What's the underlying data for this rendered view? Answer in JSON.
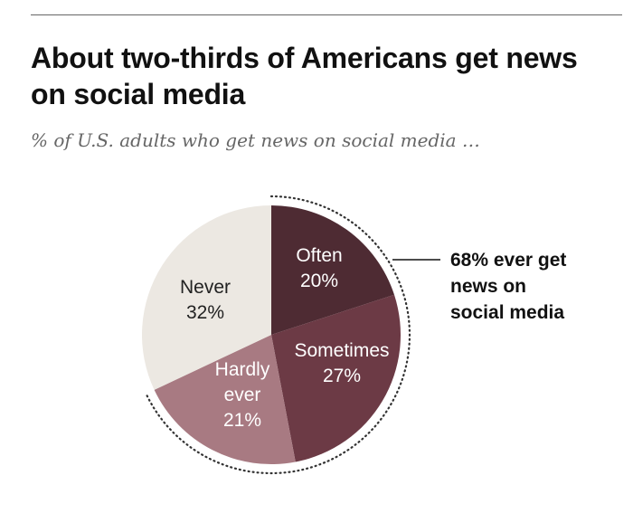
{
  "title_line1": "About two-thirds of Americans get news",
  "title_line2": "on social media",
  "subtitle": "% of U.S. adults who get news on social media …",
  "chart_data": {
    "type": "pie",
    "title": "About two-thirds of Americans get news on social media",
    "subtitle": "% of U.S. adults who get news on social media …",
    "slices": [
      {
        "name": "Often",
        "value": 20,
        "label_lines": [
          "Often",
          "20%"
        ],
        "color": "#4e2b33",
        "text_color": "#ffffff"
      },
      {
        "name": "Sometimes",
        "value": 27,
        "label_lines": [
          "Sometimes",
          "27%"
        ],
        "color": "#6c3a45",
        "text_color": "#ffffff"
      },
      {
        "name": "Hardly ever",
        "value": 21,
        "label_lines": [
          "Hardly",
          "ever",
          "21%"
        ],
        "color": "#a87a82",
        "text_color": "#ffffff"
      },
      {
        "name": "Never",
        "value": 32,
        "label_lines": [
          "Never",
          "32%"
        ],
        "color": "#ece8e2",
        "text_color": "#222222"
      }
    ],
    "annotation": {
      "value": 68,
      "lines": [
        "68% ever get",
        "news on",
        "social media"
      ]
    }
  }
}
